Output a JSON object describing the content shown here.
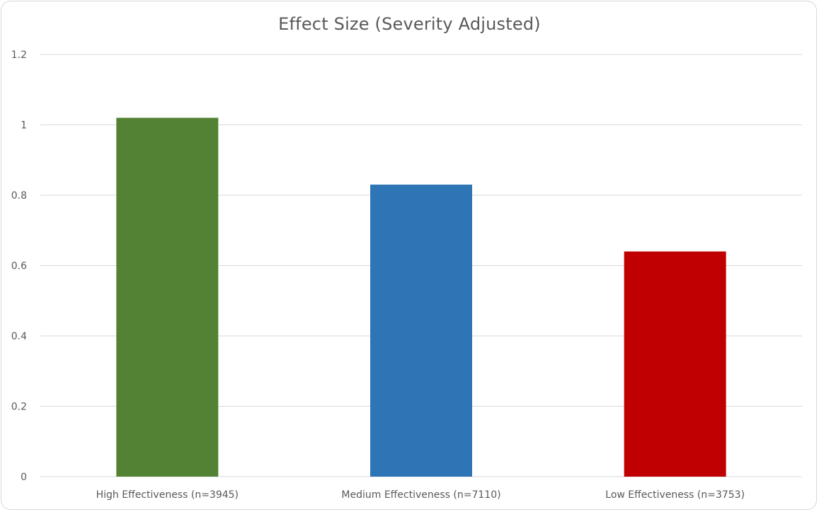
{
  "chart_data": {
    "type": "bar",
    "title": "Effect Size (Severity Adjusted)",
    "xlabel": "",
    "ylabel": "",
    "categories": [
      "High Effectiveness (n=3945)",
      "Medium Effectiveness (n=7110)",
      "Low Effectiveness  (n=3753)"
    ],
    "values": [
      1.02,
      0.83,
      0.64
    ],
    "colors": [
      "#548235",
      "#2e75b6",
      "#c00000"
    ],
    "ylim": [
      0,
      1.2
    ],
    "yticks": [
      "0",
      "0.2",
      "0.4",
      "0.6",
      "0.8",
      "1",
      "1.2"
    ],
    "grid": true,
    "legend": "none"
  }
}
